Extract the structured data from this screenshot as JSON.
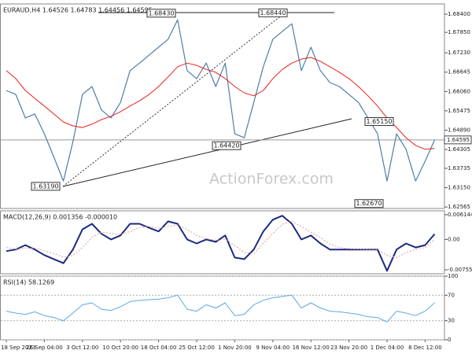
{
  "chart_data": [
    {
      "type": "line",
      "title": "EURAUD,H4  1.64526 1.64783 1.64456 1.64595",
      "watermark": "ActionForex.com",
      "categories": [
        "18 Sep 2023",
        null,
        null,
        null,
        "26 Sep 04:00",
        null,
        null,
        null,
        "3 Oct 12:00",
        null,
        null,
        null,
        "10 Oct 20:00",
        null,
        null,
        null,
        "18 Oct 04:00",
        null,
        null,
        null,
        "25 Oct 12:00",
        null,
        null,
        null,
        "1 Nov 20:00",
        null,
        null,
        null,
        "9 Nov 04:00",
        null,
        null,
        null,
        "16 Nov 12:00",
        null,
        null,
        null,
        "23 Nov 20:00",
        null,
        null,
        null,
        "1 Dec 04:00",
        null,
        null,
        null,
        "8 Dec 12:00",
        null
      ],
      "series": [
        {
          "color": "#4d7ea8",
          "width": 1.2,
          "values": [
            1.6609,
            1.6597,
            1.6526,
            1.6538,
            1.6478,
            1.6407,
            1.6335,
            1.6454,
            1.6597,
            1.6621,
            1.655,
            1.6526,
            1.6573,
            1.6669,
            1.6692,
            1.6716,
            1.674,
            1.6764,
            1.6823,
            1.6669,
            1.6645,
            1.6692,
            1.6621,
            1.6692,
            1.6478,
            1.6466,
            1.6573,
            1.6681,
            1.6764,
            1.6788,
            1.6811,
            1.6669,
            1.674,
            1.6669,
            1.6633,
            1.6621,
            1.6597,
            1.6573,
            1.6526,
            1.6478,
            1.6335,
            1.6478,
            1.6431,
            1.6335,
            1.6395,
            1.64595
          ]
        },
        {
          "color": "#e8211c",
          "width": 1,
          "values": [
            1.6669,
            1.6645,
            1.6609,
            1.6585,
            1.6562,
            1.6538,
            1.6514,
            1.6502,
            1.6497,
            1.6507,
            1.6521,
            1.6531,
            1.6545,
            1.6562,
            1.6578,
            1.6597,
            1.6621,
            1.665,
            1.6681,
            1.6692,
            1.6685,
            1.6673,
            1.6664,
            1.6645,
            1.6621,
            1.6602,
            1.6593,
            1.6609,
            1.6645,
            1.6673,
            1.6692,
            1.6704,
            1.6709,
            1.6697,
            1.6681,
            1.6664,
            1.6645,
            1.6621,
            1.6593,
            1.6562,
            1.6526,
            1.6497,
            1.6466,
            1.6443,
            1.6431,
            1.6434
          ]
        }
      ],
      "ylim": [
        1.6252,
        1.6871
      ],
      "yticks": [
        {
          "value": 1.684,
          "label": "1.68400"
        },
        {
          "value": 1.6785,
          "label": "1.67850"
        },
        {
          "value": 1.6723,
          "label": "1.67230"
        },
        1.66645,
        {
          "value": 1.6606,
          "label": "1.66060"
        },
        1.65475,
        {
          "value": 1.6489,
          "label": "1.64890"
        },
        1.64305,
        1.63735,
        {
          "value": 1.6315,
          "label": "1.63150"
        },
        1.62565
      ],
      "grid": false,
      "current_price": {
        "value": 1.64595,
        "label": "1.64595"
      },
      "annotations": [
        {
          "value": 1.6843,
          "label": "1.68430"
        },
        {
          "value": 1.6844,
          "label": "1.68440"
        },
        {
          "value": 1.6442,
          "label": "1.64420"
        },
        {
          "value": 1.6319,
          "label": "1.63190"
        },
        {
          "value": 1.6515,
          "label": "1.65150"
        },
        {
          "value": 1.6267,
          "label": "1.62670"
        }
      ]
    },
    {
      "type": "line",
      "title": "MACD(12,26,9) 0.001356 -0.000010",
      "series": [
        {
          "color": "#1b2a80",
          "width": 2,
          "values": [
            -0.0029,
            -0.0025,
            -0.0014,
            -0.0025,
            -0.0039,
            -0.0049,
            -0.0059,
            -0.0025,
            0.0025,
            0.0039,
            0.0014,
            0,
            0.001,
            0.0039,
            0.0039,
            0.0029,
            0.002,
            0.0045,
            0.0039,
            0,
            -0.001,
            0,
            -0.0006,
            0.001,
            -0.0045,
            -0.0049,
            -0.0025,
            0.002,
            0.0049,
            0.0059,
            0.0039,
            0,
            0.001,
            -0.001,
            -0.0025,
            -0.0025,
            -0.0025,
            -0.0025,
            -0.0025,
            -0.0025,
            -0.0078,
            -0.0025,
            -0.001,
            -0.002,
            -0.0014,
            0.001356
          ]
        },
        {
          "color": "#e89a9a",
          "width": 1,
          "dash": true,
          "values": [
            -0.002,
            -0.0024,
            -0.0022,
            -0.0022,
            -0.0028,
            -0.0035,
            -0.0044,
            -0.004,
            -0.002,
            0.0005,
            0.0018,
            0.0015,
            0.0012,
            0.002,
            0.003,
            0.0032,
            0.0028,
            0.0032,
            0.0036,
            0.0025,
            0.001,
            0.0002,
            -0.0002,
            0.0001,
            -0.0015,
            -0.0032,
            -0.0035,
            -0.001,
            0.0015,
            0.0038,
            0.0045,
            0.0032,
            0.0018,
            0.0005,
            -0.0012,
            -0.002,
            -0.0023,
            -0.0024,
            -0.0025,
            -0.0025,
            -0.004,
            -0.0045,
            -0.0032,
            -0.0025,
            -0.002,
            -1e-05
          ]
        }
      ],
      "ylim": [
        -0.00853,
        0.00712
      ],
      "yticks": [
        0.006144,
        {
          "value": 0,
          "label": "0.00"
        },
        -0.007555
      ],
      "grid": false
    },
    {
      "type": "line",
      "title": "RSI(14) 58.1269",
      "series": [
        {
          "color": "#5aa9e6",
          "width": 1,
          "values": [
            45,
            42,
            40,
            44,
            38,
            35,
            30,
            42,
            55,
            58,
            48,
            46,
            52,
            60,
            62,
            63,
            64,
            66,
            70,
            48,
            45,
            55,
            50,
            58,
            38,
            40,
            55,
            62,
            66,
            68,
            70,
            50,
            58,
            50,
            45,
            44,
            42,
            40,
            36,
            35,
            28,
            45,
            42,
            38,
            45,
            58.1269
          ]
        }
      ],
      "ylim": [
        0,
        100
      ],
      "yticks": [
        100,
        70,
        30,
        0
      ],
      "grid": true
    }
  ]
}
